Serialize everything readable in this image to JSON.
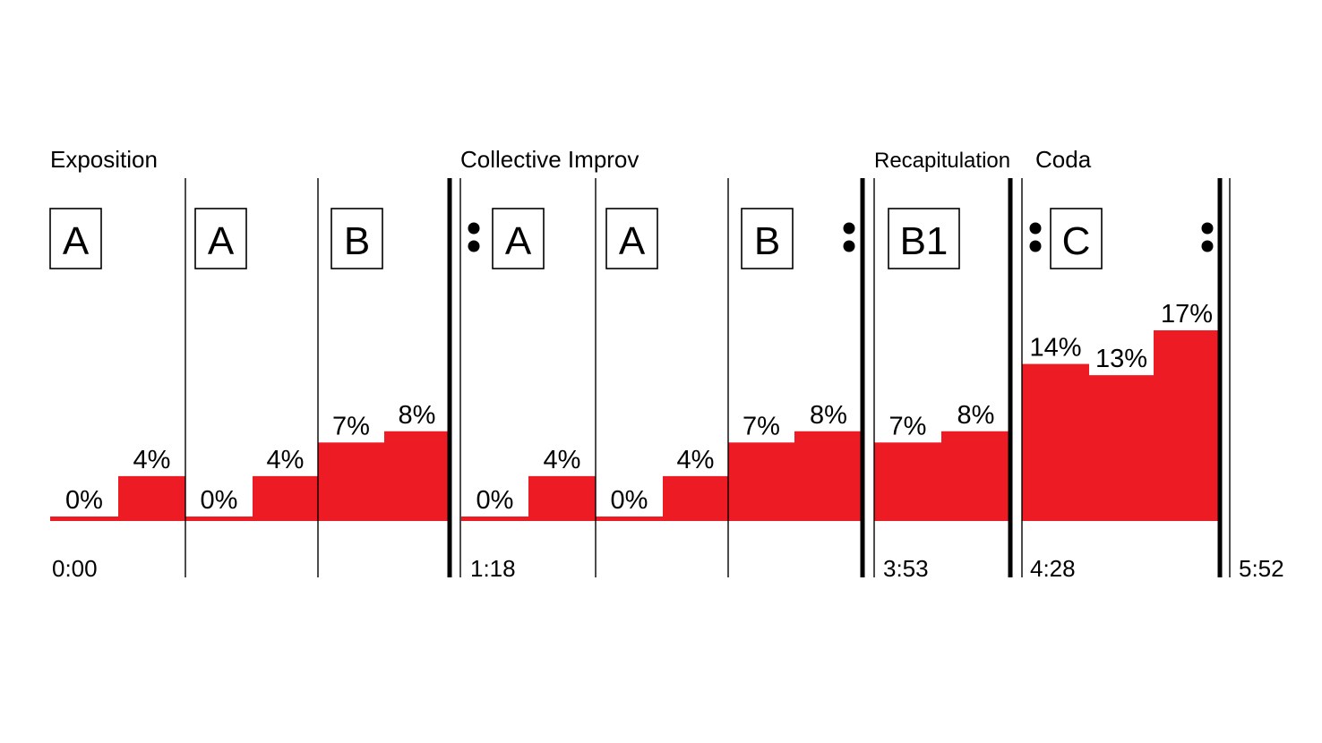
{
  "chart_data": {
    "type": "bar",
    "bar_color": "#ed1c24",
    "line_color": "#000000",
    "sections": [
      {
        "label": "Exposition"
      },
      {
        "label": "Collective Improv"
      },
      {
        "label": "Recapitulation"
      },
      {
        "label": "Coda"
      }
    ],
    "phrases": [
      {
        "label": "A"
      },
      {
        "label": "A"
      },
      {
        "label": "B"
      },
      {
        "label": "A"
      },
      {
        "label": "A"
      },
      {
        "label": "B"
      },
      {
        "label": "B1"
      },
      {
        "label": "C"
      }
    ],
    "values": [
      0,
      4,
      0,
      4,
      7,
      8,
      0,
      4,
      0,
      4,
      7,
      8,
      7,
      8,
      14,
      13,
      17
    ],
    "value_labels": [
      "0%",
      "4%",
      "0%",
      "4%",
      "7%",
      "8%",
      "0%",
      "4%",
      "0%",
      "4%",
      "7%",
      "8%",
      "7%",
      "8%",
      "14%",
      "13%",
      "17%"
    ],
    "value_unit": "%",
    "ylim": [
      0,
      17
    ],
    "time_labels": [
      "0:00",
      "1:18",
      "3:53",
      "4:28",
      "5:52"
    ],
    "repeat_signs": [
      "start-repeat",
      "end-repeat",
      "start-repeat",
      "end-repeat"
    ]
  }
}
